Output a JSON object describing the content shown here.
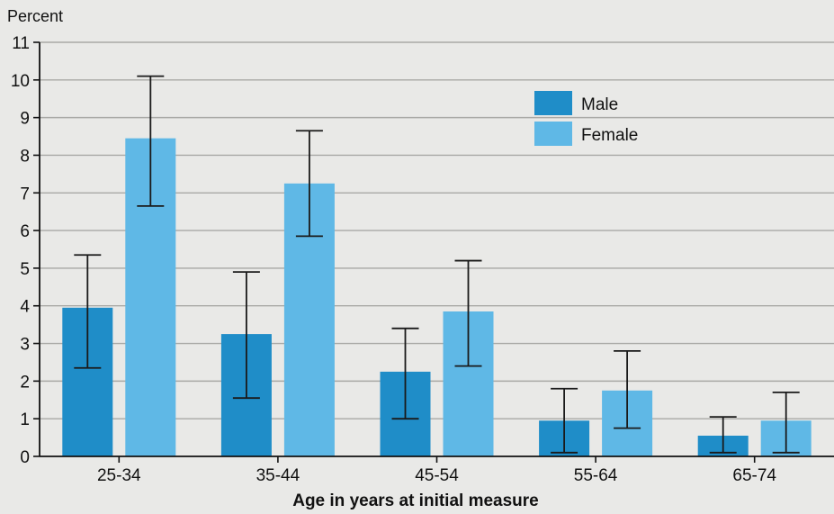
{
  "chart_data": {
    "type": "bar",
    "ylabel": "Percent",
    "xlabel": "Age in years at initial measure",
    "ylim": [
      0,
      11
    ],
    "yticks": [
      0,
      1,
      2,
      3,
      4,
      5,
      6,
      7,
      8,
      9,
      10,
      11
    ],
    "grid": true,
    "legend_position": "top-right",
    "categories": [
      "25-34",
      "35-44",
      "45-54",
      "55-64",
      "65-74"
    ],
    "series": [
      {
        "name": "Male",
        "color": "#1f8dc8",
        "values": [
          3.95,
          3.25,
          2.25,
          0.95,
          0.55
        ],
        "error_low": [
          2.35,
          1.55,
          1.0,
          0.1,
          0.1
        ],
        "error_high": [
          5.35,
          4.9,
          3.4,
          1.8,
          1.05
        ]
      },
      {
        "name": "Female",
        "color": "#5fb8e6",
        "values": [
          8.45,
          7.25,
          3.85,
          1.75,
          0.95
        ],
        "error_low": [
          6.65,
          5.85,
          2.4,
          0.75,
          0.1
        ],
        "error_high": [
          10.1,
          8.65,
          5.2,
          2.8,
          1.7
        ]
      }
    ]
  }
}
